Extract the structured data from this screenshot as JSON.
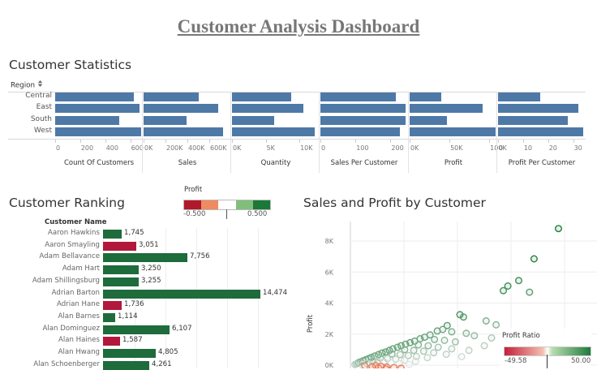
{
  "dashboard": {
    "title": "Customer Analysis Dashboard"
  },
  "stats": {
    "title": "Customer Statistics",
    "row_header": "Region",
    "sort_icon": "sort-icon",
    "regions": [
      "Central",
      "East",
      "South",
      "West"
    ],
    "bar_color": "#4e79a7",
    "panels": [
      {
        "name": "Count Of Customers",
        "max": 700,
        "ticks": [
          "0",
          "200",
          "400",
          "600"
        ],
        "tick_values": [
          0,
          200,
          400,
          600
        ],
        "values": [
          629,
          674,
          512,
          686
        ]
      },
      {
        "name": "Sales",
        "max": 800000,
        "ticks": [
          "0K",
          "200K",
          "400K",
          "600K"
        ],
        "tick_values": [
          0,
          200000,
          400000,
          600000
        ],
        "values": [
          501240,
          678781,
          391722,
          725458
        ]
      },
      {
        "name": "Quantity",
        "max": 13000,
        "ticks": [
          "0K",
          "5K",
          "10K"
        ],
        "tick_values": [
          0,
          5000,
          10000
        ],
        "values": [
          8780,
          10618,
          6209,
          12266
        ]
      },
      {
        "name": "Sales Per Customer",
        "max": 250,
        "ticks": [
          "0",
          "100",
          "200"
        ],
        "tick_values": [
          0,
          100,
          200
        ],
        "values": [
          215,
          243,
          243,
          226
        ]
      },
      {
        "name": "Profit",
        "max": 110000,
        "ticks": [
          "0K",
          "50K",
          "100K"
        ],
        "tick_values": [
          0,
          50000,
          100000
        ],
        "values": [
          39706,
          91523,
          46749,
          108418
        ]
      },
      {
        "name": "Profit Per Customer",
        "max": 35,
        "ticks": [
          "0",
          "10",
          "20",
          "30"
        ],
        "tick_values": [
          0,
          10,
          20,
          30
        ],
        "values": [
          17,
          32,
          28,
          34
        ]
      }
    ]
  },
  "ranking": {
    "title": "Customer Ranking",
    "column_header": "Customer Name",
    "max": 16000,
    "legend": {
      "title": "Profit",
      "min_label": "-0.500",
      "max_label": "0.500",
      "colors": [
        "#b2182b",
        "#ef8a62",
        "#ffffff",
        "#7fbf7b",
        "#1b7837"
      ]
    },
    "rows": [
      {
        "name": "Aaron Hawkins",
        "value": 1745,
        "label": "1,745",
        "color": "#1e6b3c"
      },
      {
        "name": "Aaron Smayling",
        "value": 3051,
        "label": "3,051",
        "color": "#b2183c"
      },
      {
        "name": "Adam Bellavance",
        "value": 7756,
        "label": "7,756",
        "color": "#1e6b3c"
      },
      {
        "name": "Adam Hart",
        "value": 3250,
        "label": "3,250",
        "color": "#1e6b3c"
      },
      {
        "name": "Adam Shillingsburg",
        "value": 3255,
        "label": "3,255",
        "color": "#1e6b3c"
      },
      {
        "name": "Adrian Barton",
        "value": 14474,
        "label": "14,474",
        "color": "#1e6b3c"
      },
      {
        "name": "Adrian Hane",
        "value": 1736,
        "label": "1,736",
        "color": "#b2183c"
      },
      {
        "name": "Alan Barnes",
        "value": 1114,
        "label": "1,114",
        "color": "#1e6b3c"
      },
      {
        "name": "Alan Dominguez",
        "value": 6107,
        "label": "6,107",
        "color": "#1e6b3c"
      },
      {
        "name": "Alan Haines",
        "value": 1587,
        "label": "1,587",
        "color": "#b2183c"
      },
      {
        "name": "Alan Hwang",
        "value": 4805,
        "label": "4,805",
        "color": "#1e6b3c"
      },
      {
        "name": "Alan Schoenberger",
        "value": 4261,
        "label": "4,261",
        "color": "#1e6b3c"
      }
    ]
  },
  "scatter": {
    "title": "Sales and Profit by Customer",
    "ylabel": "Profit",
    "yticks": [
      "0K",
      "2K",
      "4K",
      "6K",
      "8K"
    ],
    "ytick_values": [
      0,
      2000,
      4000,
      6000,
      8000
    ],
    "legend": {
      "title": "Profit Ratio",
      "min_label": "-49.58",
      "max_label": "50.00",
      "color_low": "#c41e3a",
      "color_high": "#1e7b3c"
    }
  },
  "chart_data": [
    {
      "type": "bar",
      "title": "Customer Statistics",
      "categories": [
        "Central",
        "East",
        "South",
        "West"
      ],
      "series": [
        {
          "name": "Count Of Customers",
          "values": [
            629,
            674,
            512,
            686
          ]
        },
        {
          "name": "Sales",
          "values": [
            501240,
            678781,
            391722,
            725458
          ]
        },
        {
          "name": "Quantity",
          "values": [
            8780,
            10618,
            6209,
            12266
          ]
        },
        {
          "name": "Sales Per Customer",
          "values": [
            215,
            243,
            243,
            226
          ]
        },
        {
          "name": "Profit",
          "values": [
            39706,
            91523,
            46749,
            108418
          ]
        },
        {
          "name": "Profit Per Customer",
          "values": [
            17,
            32,
            28,
            34
          ]
        }
      ]
    },
    {
      "type": "bar",
      "title": "Customer Ranking",
      "categories": [
        "Aaron Hawkins",
        "Aaron Smayling",
        "Adam Bellavance",
        "Adam Hart",
        "Adam Shillingsburg",
        "Adrian Barton",
        "Adrian Hane",
        "Alan Barnes",
        "Alan Dominguez",
        "Alan Haines",
        "Alan Hwang",
        "Alan Schoenberger"
      ],
      "values": [
        1745,
        3051,
        7756,
        3250,
        3255,
        14474,
        1736,
        1114,
        6107,
        1587,
        4805,
        4261
      ]
    },
    {
      "type": "scatter",
      "title": "Sales and Profit by Customer",
      "ylabel": "Profit",
      "ylim": [
        -300,
        9000
      ],
      "xlim": [
        0,
        26000
      ],
      "points": [
        {
          "x": 23000,
          "y": 8800,
          "ratio": 0.38
        },
        {
          "x": 20300,
          "y": 6850,
          "ratio": 0.34
        },
        {
          "x": 18600,
          "y": 5450,
          "ratio": 0.29
        },
        {
          "x": 17400,
          "y": 5100,
          "ratio": 0.3
        },
        {
          "x": 16900,
          "y": 4800,
          "ratio": 0.28
        },
        {
          "x": 19800,
          "y": 4700,
          "ratio": 0.24
        },
        {
          "x": 12100,
          "y": 3250,
          "ratio": 0.27
        },
        {
          "x": 12500,
          "y": 3100,
          "ratio": 0.25
        },
        {
          "x": 15000,
          "y": 2850,
          "ratio": 0.19
        },
        {
          "x": 16100,
          "y": 2600,
          "ratio": 0.16
        },
        {
          "x": 10700,
          "y": 2550,
          "ratio": 0.24
        },
        {
          "x": 10200,
          "y": 2300,
          "ratio": 0.22
        },
        {
          "x": 9600,
          "y": 2200,
          "ratio": 0.23
        },
        {
          "x": 11200,
          "y": 2150,
          "ratio": 0.19
        },
        {
          "x": 12800,
          "y": 2050,
          "ratio": 0.16
        },
        {
          "x": 13700,
          "y": 1900,
          "ratio": 0.14
        },
        {
          "x": 15600,
          "y": 1750,
          "ratio": 0.11
        },
        {
          "x": 8800,
          "y": 1950,
          "ratio": 0.22
        },
        {
          "x": 8200,
          "y": 1800,
          "ratio": 0.22
        },
        {
          "x": 7700,
          "y": 1700,
          "ratio": 0.22
        },
        {
          "x": 9300,
          "y": 1650,
          "ratio": 0.18
        },
        {
          "x": 10400,
          "y": 1600,
          "ratio": 0.15
        },
        {
          "x": 11600,
          "y": 1500,
          "ratio": 0.13
        },
        {
          "x": 14800,
          "y": 1250,
          "ratio": 0.08
        },
        {
          "x": 7100,
          "y": 1550,
          "ratio": 0.22
        },
        {
          "x": 6600,
          "y": 1450,
          "ratio": 0.22
        },
        {
          "x": 6100,
          "y": 1350,
          "ratio": 0.22
        },
        {
          "x": 7500,
          "y": 1300,
          "ratio": 0.17
        },
        {
          "x": 8600,
          "y": 1250,
          "ratio": 0.15
        },
        {
          "x": 9700,
          "y": 1150,
          "ratio": 0.12
        },
        {
          "x": 11200,
          "y": 1050,
          "ratio": 0.09
        },
        {
          "x": 13100,
          "y": 950,
          "ratio": 0.07
        },
        {
          "x": 5600,
          "y": 1250,
          "ratio": 0.22
        },
        {
          "x": 5200,
          "y": 1150,
          "ratio": 0.22
        },
        {
          "x": 4700,
          "y": 1050,
          "ratio": 0.22
        },
        {
          "x": 6000,
          "y": 1000,
          "ratio": 0.17
        },
        {
          "x": 7000,
          "y": 950,
          "ratio": 0.14
        },
        {
          "x": 8100,
          "y": 900,
          "ratio": 0.11
        },
        {
          "x": 9200,
          "y": 800,
          "ratio": 0.09
        },
        {
          "x": 10600,
          "y": 700,
          "ratio": 0.07
        },
        {
          "x": 12300,
          "y": 550,
          "ratio": 0.04
        },
        {
          "x": 4300,
          "y": 950,
          "ratio": 0.22
        },
        {
          "x": 3900,
          "y": 850,
          "ratio": 0.22
        },
        {
          "x": 3500,
          "y": 780,
          "ratio": 0.22
        },
        {
          "x": 4600,
          "y": 720,
          "ratio": 0.16
        },
        {
          "x": 5500,
          "y": 680,
          "ratio": 0.12
        },
        {
          "x": 6400,
          "y": 620,
          "ratio": 0.1
        },
        {
          "x": 7300,
          "y": 560,
          "ratio": 0.08
        },
        {
          "x": 8500,
          "y": 480,
          "ratio": 0.06
        },
        {
          "x": 3100,
          "y": 680,
          "ratio": 0.22
        },
        {
          "x": 2700,
          "y": 590,
          "ratio": 0.22
        },
        {
          "x": 2300,
          "y": 500,
          "ratio": 0.22
        },
        {
          "x": 3300,
          "y": 460,
          "ratio": 0.14
        },
        {
          "x": 4100,
          "y": 430,
          "ratio": 0.1
        },
        {
          "x": 5000,
          "y": 380,
          "ratio": 0.08
        },
        {
          "x": 6000,
          "y": 320,
          "ratio": 0.05
        },
        {
          "x": 7200,
          "y": 250,
          "ratio": 0.03
        },
        {
          "x": 2000,
          "y": 420,
          "ratio": 0.21
        },
        {
          "x": 1700,
          "y": 350,
          "ratio": 0.21
        },
        {
          "x": 1400,
          "y": 280,
          "ratio": 0.2
        },
        {
          "x": 1100,
          "y": 210,
          "ratio": 0.19
        },
        {
          "x": 900,
          "y": 160,
          "ratio": 0.18
        },
        {
          "x": 2500,
          "y": 300,
          "ratio": 0.12
        },
        {
          "x": 3000,
          "y": 250,
          "ratio": 0.08
        },
        {
          "x": 3700,
          "y": 200,
          "ratio": 0.05
        },
        {
          "x": 4500,
          "y": 150,
          "ratio": 0.03
        },
        {
          "x": 5400,
          "y": 100,
          "ratio": 0.02
        },
        {
          "x": 6500,
          "y": 50,
          "ratio": 0.01
        },
        {
          "x": 1800,
          "y": 120,
          "ratio": 0.07
        },
        {
          "x": 2200,
          "y": 60,
          "ratio": 0.03
        },
        {
          "x": 2800,
          "y": -20,
          "ratio": -0.01
        },
        {
          "x": 3400,
          "y": -80,
          "ratio": -0.03
        },
        {
          "x": 4000,
          "y": -120,
          "ratio": -0.03
        },
        {
          "x": 4800,
          "y": -160,
          "ratio": -0.04
        },
        {
          "x": 5600,
          "y": -200,
          "ratio": -0.04
        },
        {
          "x": 1300,
          "y": 30,
          "ratio": 0.02
        },
        {
          "x": 1600,
          "y": -50,
          "ratio": -0.03
        },
        {
          "x": 2400,
          "y": -120,
          "ratio": -0.05
        },
        {
          "x": 3100,
          "y": -180,
          "ratio": -0.06
        },
        {
          "x": 3900,
          "y": -240,
          "ratio": -0.06
        },
        {
          "x": 700,
          "y": 90,
          "ratio": 0.13
        },
        {
          "x": 500,
          "y": 40,
          "ratio": 0.08
        }
      ]
    }
  ]
}
